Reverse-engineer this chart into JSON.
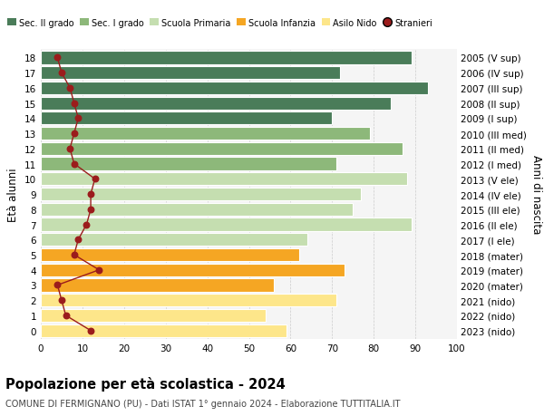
{
  "ages": [
    0,
    1,
    2,
    3,
    4,
    5,
    6,
    7,
    8,
    9,
    10,
    11,
    12,
    13,
    14,
    15,
    16,
    17,
    18
  ],
  "bar_values": [
    59,
    54,
    71,
    56,
    73,
    62,
    64,
    89,
    75,
    77,
    88,
    71,
    87,
    79,
    70,
    84,
    93,
    72,
    89
  ],
  "stranieri_values": [
    12,
    6,
    5,
    4,
    14,
    8,
    9,
    11,
    12,
    12,
    13,
    8,
    7,
    8,
    9,
    8,
    7,
    5,
    4
  ],
  "bar_colors": [
    "#fde68a",
    "#fde68a",
    "#fde68a",
    "#f5a623",
    "#f5a623",
    "#f5a623",
    "#c5deb0",
    "#c5deb0",
    "#c5deb0",
    "#c5deb0",
    "#c5deb0",
    "#8db87a",
    "#8db87a",
    "#8db87a",
    "#4a7c59",
    "#4a7c59",
    "#4a7c59",
    "#4a7c59",
    "#4a7c59"
  ],
  "right_labels": [
    "2023 (nido)",
    "2022 (nido)",
    "2021 (nido)",
    "2020 (mater)",
    "2019 (mater)",
    "2018 (mater)",
    "2017 (I ele)",
    "2016 (II ele)",
    "2015 (III ele)",
    "2014 (IV ele)",
    "2013 (V ele)",
    "2012 (I med)",
    "2011 (II med)",
    "2010 (III med)",
    "2009 (I sup)",
    "2008 (II sup)",
    "2007 (III sup)",
    "2006 (IV sup)",
    "2005 (V sup)"
  ],
  "ylabel": "Età alunni",
  "right_ylabel": "Anni di nascita",
  "title": "Popolazione per età scolastica - 2024",
  "subtitle": "COMUNE DI FERMIGNANO (PU) - Dati ISTAT 1° gennaio 2024 - Elaborazione TUTTITALIA.IT",
  "legend_labels": [
    "Sec. II grado",
    "Sec. I grado",
    "Scuola Primaria",
    "Scuola Infanzia",
    "Asilo Nido",
    "Stranieri"
  ],
  "legend_colors": [
    "#4a7c59",
    "#8db87a",
    "#c5deb0",
    "#f5a623",
    "#fde68a",
    "#9b1c1c"
  ],
  "stranieri_color": "#9b1c1c",
  "xlim": [
    0,
    100
  ],
  "background_color": "#ffffff",
  "plot_bg_color": "#f5f5f5",
  "grid_color": "#cccccc"
}
